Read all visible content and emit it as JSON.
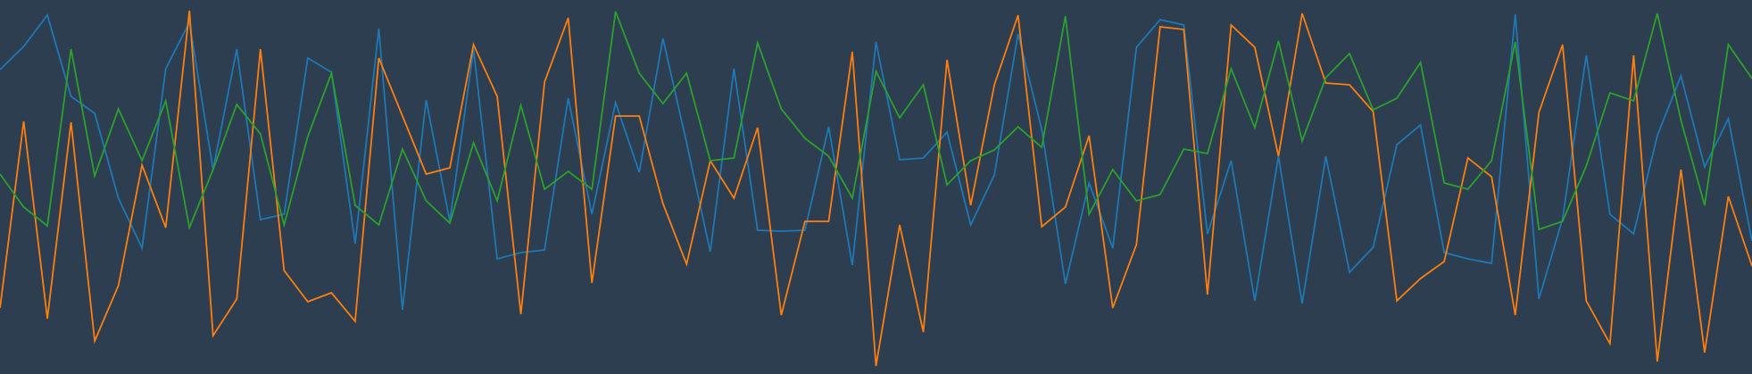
{
  "chart_data": {
    "type": "line",
    "xlim": [
      0,
      74
    ],
    "ylim": [
      419,
      0
    ],
    "background": "#2c3e50",
    "series": [
      {
        "color": "#1f77b4",
        "values": [
          78,
          52,
          17,
          108,
          127,
          222,
          278,
          77,
          25,
          190,
          55,
          246,
          240,
          65,
          81,
          273,
          32,
          347,
          112,
          248,
          55,
          290,
          283,
          280,
          110,
          240,
          115,
          193,
          43,
          160,
          282,
          77,
          258,
          259,
          258,
          142,
          297,
          47,
          179,
          177,
          148,
          252,
          196,
          38,
          145,
          318,
          205,
          278,
          53,
          22,
          28,
          262,
          180,
          337,
          175,
          340,
          175,
          305,
          277,
          162,
          140,
          283,
          290,
          295,
          16,
          335,
          245,
          62,
          240,
          262,
          152,
          85,
          187,
          133,
          270
        ]
      },
      {
        "color": "#ff7f0e",
        "values": [
          345,
          136,
          357,
          137,
          382,
          320,
          185,
          255,
          12,
          376,
          335,
          55,
          303,
          338,
          328,
          360,
          65,
          130,
          195,
          188,
          50,
          108,
          352,
          92,
          20,
          317,
          130,
          130,
          228,
          296,
          180,
          222,
          143,
          353,
          248,
          248,
          58,
          410,
          252,
          372,
          67,
          230,
          95,
          17,
          254,
          232,
          152,
          345,
          274,
          30,
          33,
          330,
          28,
          53,
          175,
          15,
          93,
          95,
          125,
          337,
          312,
          293,
          177,
          198,
          353,
          126,
          50,
          337,
          385,
          62,
          405,
          190,
          395,
          220,
          298
        ]
      },
      {
        "color": "#2ca02c",
        "values": [
          195,
          232,
          253,
          55,
          197,
          122,
          180,
          113,
          255,
          190,
          117,
          150,
          252,
          153,
          82,
          230,
          252,
          167,
          225,
          250,
          160,
          225,
          118,
          212,
          192,
          212,
          13,
          82,
          116,
          82,
          180,
          177,
          48,
          122,
          155,
          175,
          222,
          80,
          132,
          95,
          207,
          180,
          168,
          142,
          165,
          18,
          240,
          190,
          225,
          218,
          167,
          172,
          77,
          143,
          46,
          158,
          87,
          60,
          123,
          110,
          70,
          205,
          212,
          180,
          47,
          257,
          248,
          186,
          104,
          113,
          15,
          135,
          230,
          50,
          88
        ]
      }
    ]
  }
}
